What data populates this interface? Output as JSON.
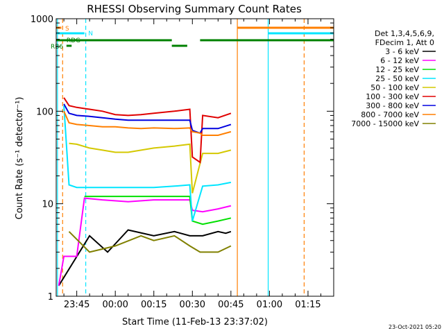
{
  "chart_data": {
    "type": "line",
    "title": "RHESSI Observing Summary Count Rates",
    "xlabel": "Start Time (11-Feb-13 23:37:02)",
    "ylabel": "Count Rate (s⁻¹ detector⁻¹)",
    "yscale": "log",
    "ylim": [
      1,
      1000
    ],
    "xlim_minutes": [
      -8,
      100
    ],
    "x_ticks": [
      {
        "label": "23:45",
        "t": 0
      },
      {
        "label": "00:00",
        "t": 15
      },
      {
        "label": "00:15",
        "t": 30
      },
      {
        "label": "00:30",
        "t": 45
      },
      {
        "label": "00:45",
        "t": 60
      },
      {
        "label": "01:00",
        "t": 75
      },
      {
        "label": "01:15",
        "t": 90
      }
    ],
    "y_ticks": [
      {
        "label": "1",
        "v": 1
      },
      {
        "label": "10",
        "v": 10
      },
      {
        "label": "100",
        "v": 100
      },
      {
        "label": "1000",
        "v": 1000
      }
    ],
    "legend": {
      "placement": "right",
      "header": [
        "Det 1,3,4,5,6,9,",
        "FDecim 1, Att 0"
      ],
      "entries": [
        {
          "label": "3 - 6 keV",
          "color": "#000000"
        },
        {
          "label": "6 - 12 keV",
          "color": "#ff00ff"
        },
        {
          "label": "12 - 25 keV",
          "color": "#00e000"
        },
        {
          "label": "25 - 50 keV",
          "color": "#00e5ff"
        },
        {
          "label": "50 - 100 keV",
          "color": "#d4c800"
        },
        {
          "label": "100 - 300 keV",
          "color": "#e00000"
        },
        {
          "label": "300 - 800 keV",
          "color": "#0000e0"
        },
        {
          "label": "800 - 7000 keV",
          "color": "#ff7f00"
        },
        {
          "label": "7000 - 15000 keV",
          "color": "#808000"
        }
      ]
    },
    "series": [
      {
        "name": "3 - 6 keV",
        "color": "#000000",
        "t": [
          -7,
          5,
          12,
          20,
          30,
          38,
          44,
          49,
          55,
          58,
          60
        ],
        "values": [
          1.3,
          4.5,
          3.0,
          5.2,
          4.5,
          5.0,
          4.5,
          4.5,
          5.0,
          4.8,
          5.0
        ]
      },
      {
        "name": "6 - 12 keV",
        "color": "#ff00ff",
        "t": [
          -7,
          -5,
          0,
          3,
          10,
          20,
          30,
          38,
          44,
          45,
          49,
          55,
          60
        ],
        "values": [
          1.3,
          2.7,
          2.7,
          11.5,
          11,
          10.5,
          11,
          11,
          11,
          8.5,
          8.2,
          8.8,
          9.5
        ]
      },
      {
        "name": "12 - 25 keV",
        "color": "#00e000",
        "t": [
          3,
          10,
          20,
          30,
          38,
          44,
          45,
          49,
          55,
          60
        ],
        "values": [
          12,
          12,
          12,
          12,
          12,
          12,
          6.5,
          6.0,
          6.5,
          7.0
        ]
      },
      {
        "name": "25 - 50 keV",
        "color": "#00e5ff",
        "t": [
          -5,
          -3,
          0,
          10,
          20,
          30,
          38,
          44,
          45,
          49,
          55,
          60
        ],
        "values": [
          115,
          16,
          15,
          15,
          15,
          15,
          15.5,
          16,
          6.5,
          15.5,
          16,
          17
        ]
      },
      {
        "name": "50 - 100 keV",
        "color": "#d4c800",
        "t": [
          -3,
          0,
          5,
          10,
          15,
          20,
          30,
          38,
          44,
          45,
          49,
          55,
          60
        ],
        "values": [
          45,
          44,
          40,
          38,
          36,
          36,
          40,
          42,
          44,
          13,
          35,
          35,
          38
        ]
      },
      {
        "name": "100 - 300 keV",
        "color": "#e00000",
        "t": [
          -5,
          -3,
          0,
          5,
          10,
          15,
          20,
          25,
          30,
          38,
          44,
          45,
          48,
          49,
          55,
          60
        ],
        "values": [
          140,
          115,
          110,
          105,
          100,
          92,
          90,
          92,
          95,
          100,
          105,
          32,
          28,
          90,
          85,
          95
        ]
      },
      {
        "name": "300 - 800 keV",
        "color": "#0000e0",
        "t": [
          -5,
          -3,
          0,
          5,
          10,
          15,
          20,
          25,
          30,
          38,
          44,
          45,
          48,
          49,
          55,
          60
        ],
        "values": [
          120,
          95,
          90,
          88,
          85,
          82,
          80,
          80,
          80,
          80,
          80,
          62,
          58,
          65,
          65,
          72
        ]
      },
      {
        "name": "800 - 7000 keV",
        "color": "#ff7f00",
        "t": [
          -5,
          -3,
          0,
          5,
          10,
          15,
          20,
          25,
          30,
          38,
          44,
          45,
          48,
          49,
          55,
          60
        ],
        "values": [
          100,
          75,
          72,
          70,
          68,
          68,
          66,
          65,
          66,
          65,
          66,
          60,
          58,
          55,
          55,
          60
        ]
      },
      {
        "name": "7000 - 15000 keV",
        "color": "#808000",
        "t": [
          -3,
          5,
          15,
          25,
          30,
          38,
          44,
          48,
          55,
          60
        ],
        "values": [
          5.0,
          3.0,
          3.5,
          4.5,
          4.0,
          4.5,
          3.5,
          3.0,
          3.0,
          3.5
        ]
      }
    ],
    "vertical_markers": [
      {
        "t": -7.5,
        "color": "#00e5ff",
        "style": "solid"
      },
      {
        "t": -5.5,
        "color": "#ff7f00",
        "style": "dashed"
      },
      {
        "t": 3.5,
        "color": "#00e5ff",
        "style": "dashed"
      },
      {
        "t": 62.5,
        "color": "#ff7f00",
        "style": "solid"
      },
      {
        "t": 74.5,
        "color": "#00e5ff",
        "style": "solid"
      },
      {
        "t": 88.5,
        "color": "#ff7f00",
        "style": "dashed"
      }
    ],
    "flag_bars": [
      {
        "label": "S",
        "color": "#ff7f00",
        "segments": [
          [
            -8,
            -6
          ],
          [
            62.5,
            100
          ]
        ]
      },
      {
        "label": "N",
        "color": "#00e5ff",
        "segments": [
          [
            -8,
            3
          ],
          [
            74.5,
            100
          ]
        ]
      },
      {
        "label": "RDG",
        "color": "#008000",
        "segments": [
          [
            -8,
            37
          ],
          [
            48,
            100
          ]
        ]
      },
      {
        "label": "RB6",
        "color": "#008000",
        "segments": [
          [
            -4,
            -2
          ],
          [
            37,
            43
          ]
        ]
      }
    ],
    "footer": "23-Oct-2021 05:20"
  }
}
